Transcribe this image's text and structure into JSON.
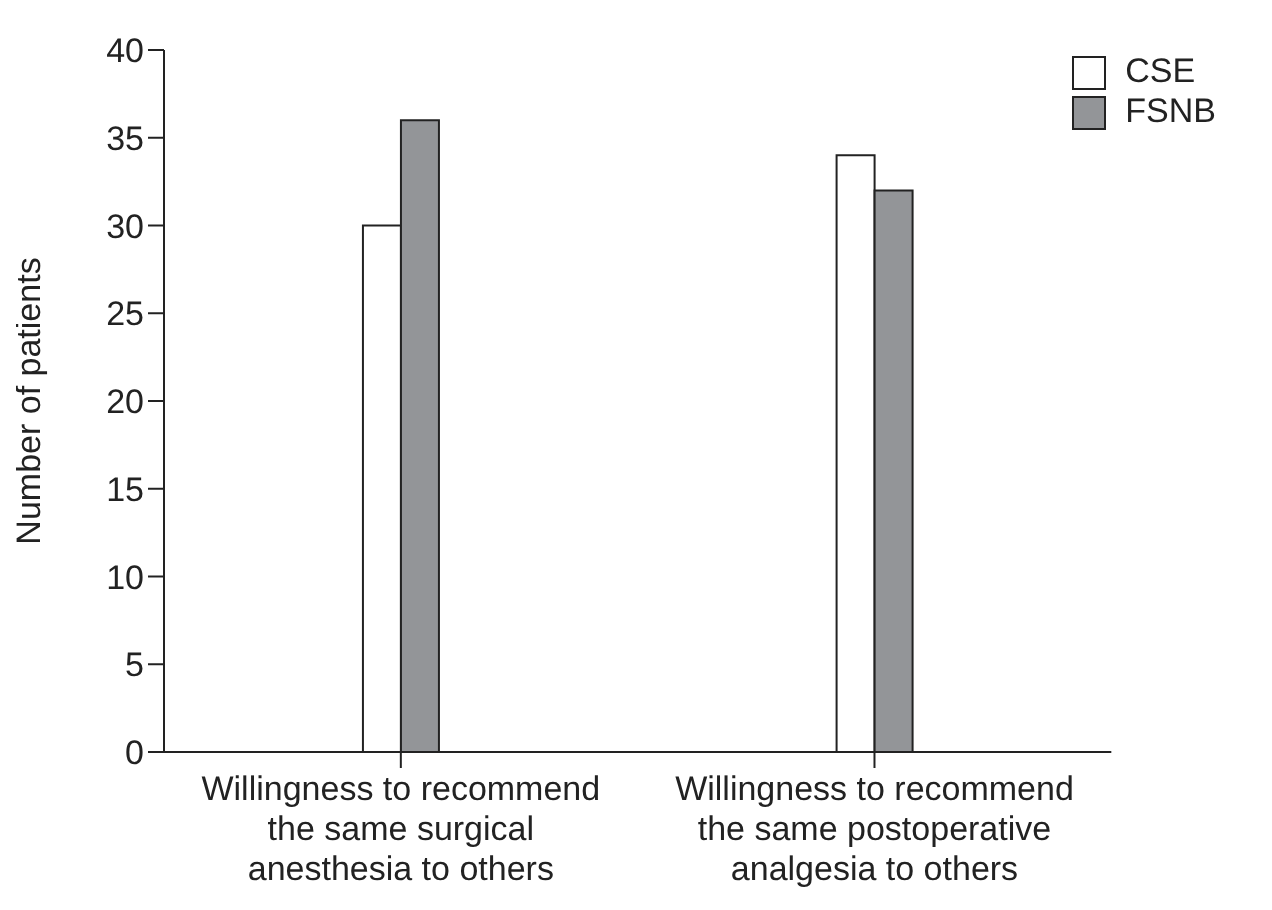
{
  "chart_data": {
    "type": "bar",
    "ylabel": "Number of patients",
    "categories": [
      "Willingness to recommend the same surgical anesthesia to others",
      "Willingness to recommend the same postoperative analgesia to others"
    ],
    "series": [
      {
        "name": "CSE",
        "color": "#ffffff",
        "values": [
          30,
          34
        ]
      },
      {
        "name": "FSNB",
        "color": "#939598",
        "values": [
          36,
          32
        ]
      }
    ],
    "ylim": [
      0,
      40
    ],
    "yticks": [
      0,
      5,
      10,
      15,
      20,
      25,
      30,
      35,
      40
    ],
    "grid": false,
    "legend": "top right"
  }
}
